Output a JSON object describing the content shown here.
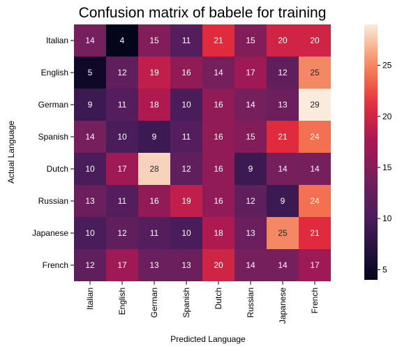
{
  "chart_data": {
    "type": "heatmap",
    "title": "Confusion matrix of babele for training",
    "xlabel": "Predicted Language",
    "ylabel": "Actual Language",
    "x_categories": [
      "Italian",
      "English",
      "German",
      "Spanish",
      "Dutch",
      "Russian",
      "Japanese",
      "French"
    ],
    "y_categories": [
      "Italian",
      "English",
      "German",
      "Spanish",
      "Dutch",
      "Russian",
      "Japanese",
      "French"
    ],
    "values": [
      [
        14,
        4,
        15,
        11,
        21,
        15,
        20,
        20
      ],
      [
        5,
        12,
        19,
        16,
        14,
        17,
        12,
        25
      ],
      [
        9,
        11,
        18,
        10,
        16,
        14,
        13,
        29
      ],
      [
        14,
        10,
        9,
        11,
        16,
        15,
        21,
        24
      ],
      [
        10,
        17,
        28,
        12,
        16,
        9,
        14,
        14
      ],
      [
        13,
        11,
        16,
        19,
        16,
        12,
        9,
        24
      ],
      [
        10,
        12,
        11,
        10,
        18,
        13,
        25,
        21
      ],
      [
        12,
        17,
        13,
        13,
        20,
        14,
        14,
        17
      ]
    ],
    "vmin": 4,
    "vmax": 29,
    "colorbar_ticks": [
      5,
      10,
      15,
      20,
      25
    ],
    "colormap": "rocket"
  }
}
